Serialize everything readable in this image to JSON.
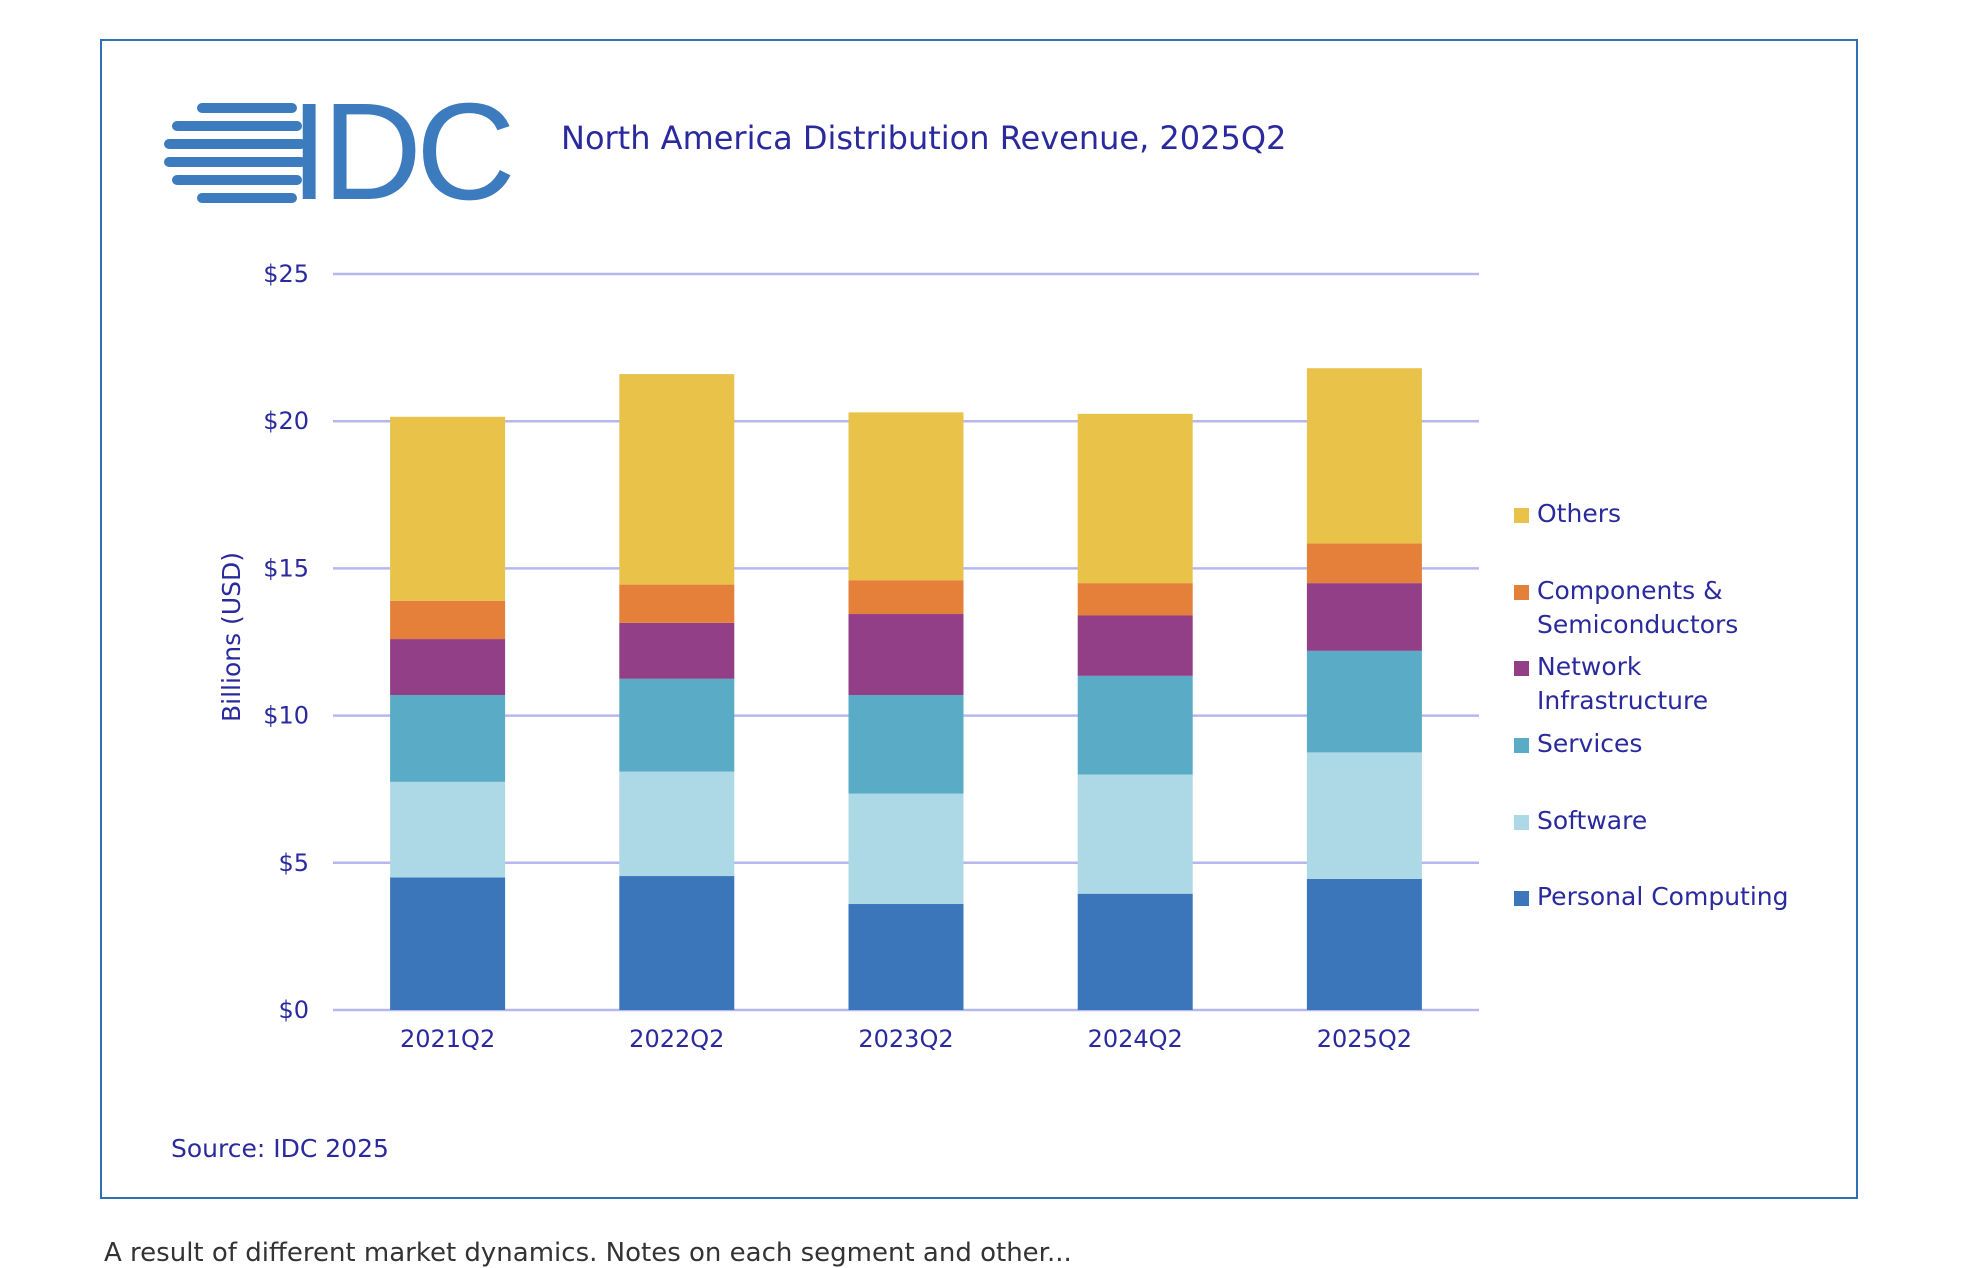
{
  "logo": {
    "text": "IDC"
  },
  "chart_data": {
    "type": "stacked-bar",
    "title": "North America Distribution Revenue, 2025Q2",
    "ylabel": "Billions (USD)",
    "xlabel": "",
    "ylim": [
      0,
      25
    ],
    "yticks": [
      0,
      5,
      10,
      15,
      20,
      25
    ],
    "ytick_labels": [
      "$0",
      "$5",
      "$10",
      "$15",
      "$20",
      "$25"
    ],
    "grid": true,
    "legend_position": "right",
    "categories": [
      "2021Q2",
      "2022Q2",
      "2023Q2",
      "2024Q2",
      "2025Q2"
    ],
    "series": [
      {
        "name": "Personal Computing",
        "color": "#3a76b9",
        "values": [
          4.5,
          4.55,
          3.6,
          3.95,
          4.45
        ]
      },
      {
        "name": "Software",
        "color": "#add8e6",
        "values": [
          3.25,
          3.55,
          3.75,
          4.05,
          4.3
        ]
      },
      {
        "name": "Services",
        "color": "#5aabc6",
        "values": [
          2.95,
          3.15,
          3.35,
          3.35,
          3.45
        ]
      },
      {
        "name": "Network Infrastructure",
        "color": "#923f87",
        "values": [
          1.9,
          1.9,
          2.75,
          2.05,
          2.3
        ]
      },
      {
        "name": "Components & Semiconductors",
        "color": "#e4803a",
        "values": [
          1.3,
          1.3,
          1.15,
          1.1,
          1.35
        ]
      },
      {
        "name": "Others",
        "color": "#e9c24a",
        "values": [
          6.25,
          7.15,
          5.7,
          5.75,
          5.95
        ]
      }
    ],
    "legend_lines": [
      [
        "Others"
      ],
      [
        "Components &",
        "Semiconductors"
      ],
      [
        "Network",
        "Infrastructure"
      ],
      [
        "Services"
      ],
      [
        "Software"
      ],
      [
        "Personal Computing"
      ]
    ],
    "source": "Source: IDC 2025"
  },
  "colors": {
    "frame": "#2f6fb3",
    "text": "#2a2a9e",
    "grid": "#b7b7f0",
    "logo": "#3d7bbf"
  },
  "caption_fragment": "A result of different market dynamics. Notes on each segment and other..."
}
